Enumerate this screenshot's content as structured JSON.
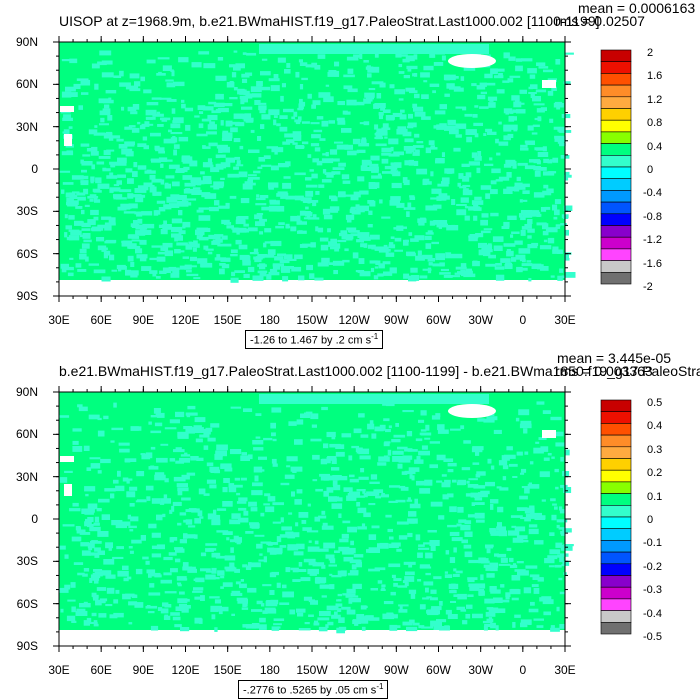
{
  "panels": [
    {
      "title": "UISOP at z=1968.9m, b.e21.BWmaHIST.f19_g17.PaleoStrat.Last1000.002 [1100-1199]",
      "mean": "mean = 0.0006163",
      "rms": "rms = 0.02507",
      "range": "-1.26 to 1.467 by .2 cm s",
      "range_sup": "-1",
      "colorbar_labels": [
        "2",
        "1.6",
        "1.2",
        "0.8",
        "0.4",
        "0",
        "-0.4",
        "-0.8",
        "-1.2",
        "-1.6",
        "-2"
      ],
      "ocean_color": "#00ff7f",
      "speckle_color": "#33ffcc"
    },
    {
      "title": "b.e21.BWmaHIST.f19_g17.PaleoStrat.Last1000.002 [1100-1199] - b.e21.BWma1850.f19_g17.PaleoStrat",
      "mean": "mean = 3.445e-05",
      "rms": "rms = 0.003363",
      "range": "-.2776 to .5265 by .05 cm s",
      "range_sup": "-1",
      "colorbar_labels": [
        "0.5",
        "0.4",
        "0.3",
        "0.2",
        "0.1",
        "0",
        "-0.1",
        "-0.2",
        "-0.3",
        "-0.4",
        "-0.5"
      ],
      "ocean_color": "#00ff7f",
      "speckle_color": "#33ffcc"
    }
  ],
  "lat_labels": [
    "90N",
    "60N",
    "30N",
    "0",
    "30S",
    "60S",
    "90S"
  ],
  "lon_labels": [
    "30E",
    "60E",
    "90E",
    "120E",
    "150E",
    "180",
    "150W",
    "120W",
    "90W",
    "60W",
    "30W",
    "0",
    "30E"
  ],
  "colorbar_colors": [
    "#c80000",
    "#ee1000",
    "#ff5000",
    "#ff8c28",
    "#ffaa40",
    "#ffd000",
    "#ffff00",
    "#88ff00",
    "#00ff7f",
    "#33ffcc",
    "#00ffff",
    "#00ccff",
    "#0099ff",
    "#0055ff",
    "#0000ff",
    "#8800cc",
    "#cc00cc",
    "#ff44ff",
    "#c8c8c8",
    "#707070"
  ]
}
